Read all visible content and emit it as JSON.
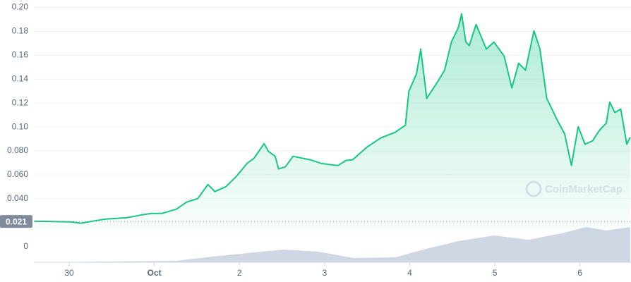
{
  "chart_data": {
    "type": "line",
    "color": "#16c784",
    "x": [
      -0.41,
      0.02,
      0.14,
      0.27,
      0.43,
      0.68,
      0.85,
      0.97,
      1.09,
      1.26,
      1.38,
      1.51,
      1.63,
      1.71,
      1.84,
      1.96,
      2.09,
      2.17,
      2.29,
      2.34,
      2.42,
      2.46,
      2.54,
      2.63,
      2.71,
      2.83,
      2.96,
      3.08,
      3.16,
      3.25,
      3.33,
      3.5,
      3.66,
      3.83,
      3.95,
      3.99,
      4.08,
      4.13,
      4.2,
      4.32,
      4.41,
      4.49,
      4.57,
      4.61,
      4.66,
      4.7,
      4.78,
      4.9,
      4.99,
      5.11,
      5.2,
      5.28,
      5.36,
      5.46,
      5.53,
      5.61,
      5.69,
      5.73,
      5.82,
      5.9,
      5.98,
      6.06,
      6.15,
      6.23,
      6.31,
      6.35,
      6.41,
      6.48,
      6.55,
      6.59
    ],
    "values": [
      0.0212,
      0.0206,
      0.0195,
      0.0212,
      0.023,
      0.0242,
      0.0265,
      0.0277,
      0.0277,
      0.0313,
      0.0372,
      0.0401,
      0.0519,
      0.046,
      0.0501,
      0.0584,
      0.0696,
      0.0737,
      0.0861,
      0.0796,
      0.0755,
      0.0649,
      0.0667,
      0.0755,
      0.0743,
      0.0726,
      0.0696,
      0.0684,
      0.0678,
      0.072,
      0.0726,
      0.0832,
      0.0908,
      0.0956,
      0.1015,
      0.1298,
      0.1445,
      0.1652,
      0.1239,
      0.1369,
      0.1475,
      0.1711,
      0.1829,
      0.1947,
      0.1711,
      0.1681,
      0.1858,
      0.1652,
      0.1711,
      0.1593,
      0.1327,
      0.1534,
      0.1475,
      0.1805,
      0.1652,
      0.1239,
      0.1121,
      0.1062,
      0.0944,
      0.0678,
      0.1003,
      0.0856,
      0.0885,
      0.0973,
      0.1032,
      0.1209,
      0.1121,
      0.115,
      0.0856,
      0.0914
    ],
    "xlim": [
      -0.415,
      6.6
    ],
    "xticks": [
      {
        "value": 0,
        "label": "30"
      },
      {
        "value": 1,
        "label": "Oct"
      },
      2,
      3,
      4,
      5,
      6
    ],
    "ylim": [
      0.0118,
      0.2047
    ],
    "yticks": [
      {
        "value": 0.2,
        "label": "0.20"
      },
      {
        "value": 0.18,
        "label": "0.18"
      },
      {
        "value": 0.16,
        "label": "0.16"
      },
      {
        "value": 0.14,
        "label": "0.14"
      },
      {
        "value": 0.12,
        "label": "0.12"
      },
      {
        "value": 0.1,
        "label": "0.10"
      },
      {
        "value": 0.08,
        "label": "0.080"
      },
      {
        "value": 0.06,
        "label": "0.060"
      },
      {
        "value": 0.04,
        "label": "0.040"
      }
    ],
    "grid": true,
    "current_price": {
      "value": 0.021,
      "label": "0.021"
    },
    "volume": {
      "color": "#cfd6e4",
      "x": [
        -0.41,
        1.26,
        1.68,
        2.51,
        2.93,
        3.34,
        3.83,
        4.16,
        4.57,
        4.99,
        5.4,
        5.82,
        6.07,
        6.31,
        6.59
      ],
      "values": [
        0,
        0.04,
        0.16,
        0.36,
        0.3,
        0.12,
        0.14,
        0.36,
        0.6,
        0.76,
        0.64,
        0.84,
        1,
        0.9,
        1
      ],
      "ylim": [
        0,
        1
      ],
      "yticks": [
        0
      ]
    },
    "watermark": "CoinMarketCap"
  }
}
